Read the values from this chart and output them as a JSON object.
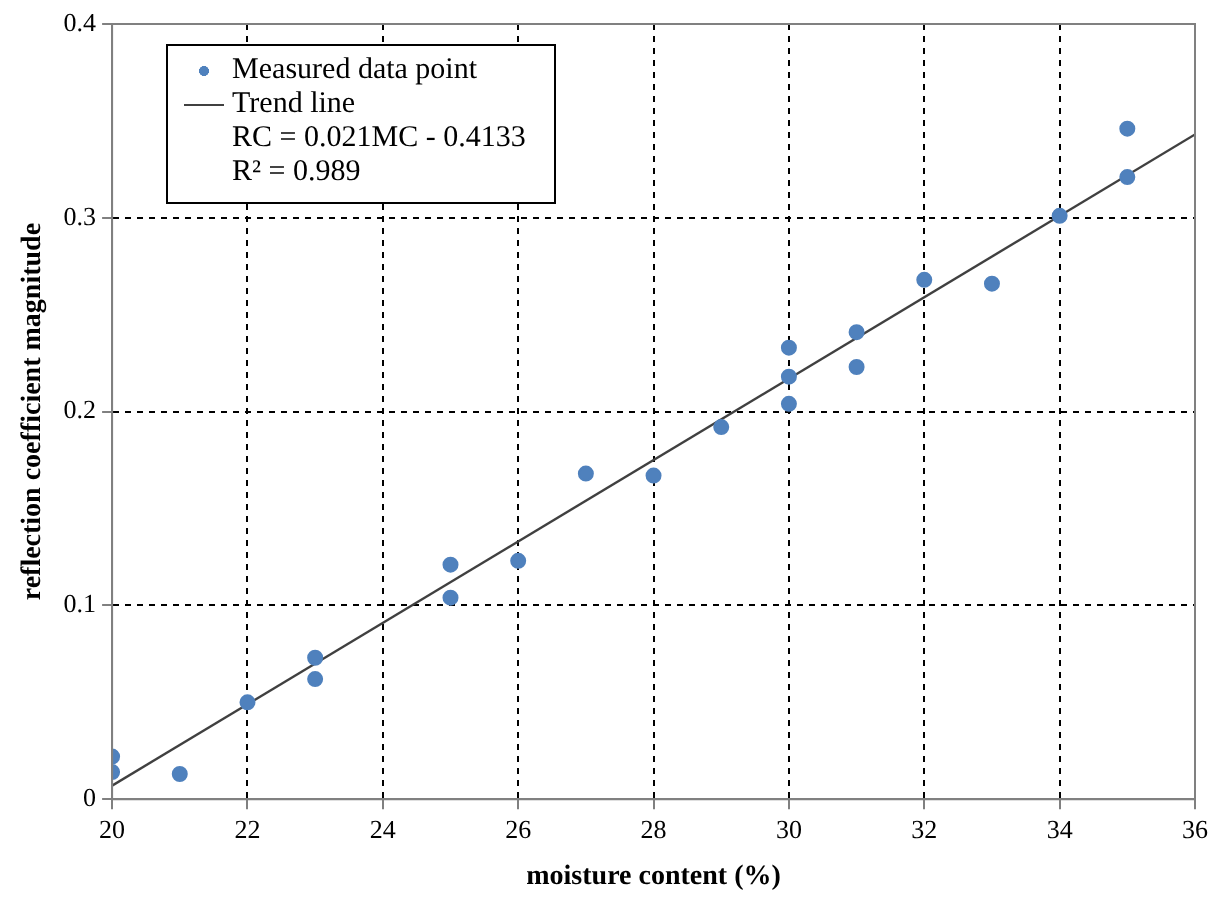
{
  "chart_data": {
    "type": "scatter",
    "xlabel": "moisture content (%)",
    "ylabel": "reflection coefficient magnitude",
    "series": [
      {
        "name": "Measured data point",
        "marker": "circle",
        "color": "#4f81bd",
        "x": [
          20,
          20,
          21,
          22,
          23,
          23,
          25,
          25,
          26,
          27,
          28,
          29,
          30,
          30,
          30,
          31,
          31,
          32,
          33,
          34,
          35,
          35
        ],
        "values": [
          0.022,
          0.014,
          0.013,
          0.05,
          0.073,
          0.062,
          0.121,
          0.104,
          0.123,
          0.168,
          0.167,
          0.192,
          0.233,
          0.218,
          0.204,
          0.241,
          0.223,
          0.268,
          0.266,
          0.301,
          0.346,
          0.321
        ]
      },
      {
        "name": "Trend line",
        "type": "line",
        "color": "#404040",
        "x": [
          20,
          36
        ],
        "values": [
          0.007,
          0.343
        ]
      }
    ],
    "annotations": [
      "RC = 0.021MC - 0.4133",
      "R² = 0.989"
    ],
    "xlim": [
      20,
      36
    ],
    "xticks": [
      20,
      22,
      24,
      26,
      28,
      30,
      32,
      34,
      36
    ],
    "ylim": [
      0,
      0.4
    ],
    "yticks": [
      0,
      0.1,
      0.2,
      0.3,
      0.4
    ],
    "grid": true,
    "legend": "top left"
  }
}
